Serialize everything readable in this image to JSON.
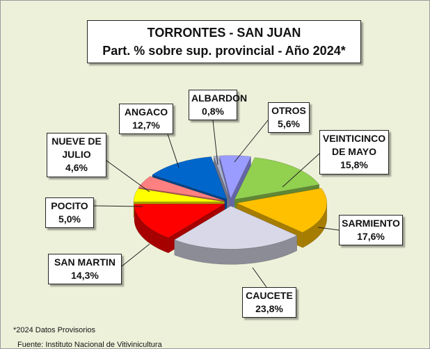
{
  "chart_data": {
    "type": "pie",
    "title": "TORRONTES - SAN JUAN",
    "subtitle": "Part. % sobre sup. provincial  - Año 2024*",
    "categories": [
      "ALBARDON",
      "OTROS",
      "VEINTICINCO DE MAYO",
      "SARMIENTO",
      "CAUCETE",
      "SAN MARTIN",
      "POCITO",
      "NUEVE DE JULIO",
      "ANGACO"
    ],
    "values": [
      0.8,
      5.6,
      15.8,
      17.6,
      23.8,
      14.3,
      5.0,
      4.6,
      12.7
    ],
    "value_labels": [
      "0,8%",
      "5,6%",
      "15,8%",
      "17,6%",
      "23,8%",
      "14,3%",
      "5,0%",
      "4,6%",
      "12,7%"
    ],
    "colors": [
      "#aab2d0",
      "#9a9cff",
      "#92d050",
      "#ffc000",
      "#d8d8e8",
      "#ff0000",
      "#ffff00",
      "#ff8080",
      "#0066cc"
    ],
    "notes": [
      "*2024 Datos Provisorios",
      "Fuente: Instituto Nacional de Vitivinicultura"
    ]
  }
}
